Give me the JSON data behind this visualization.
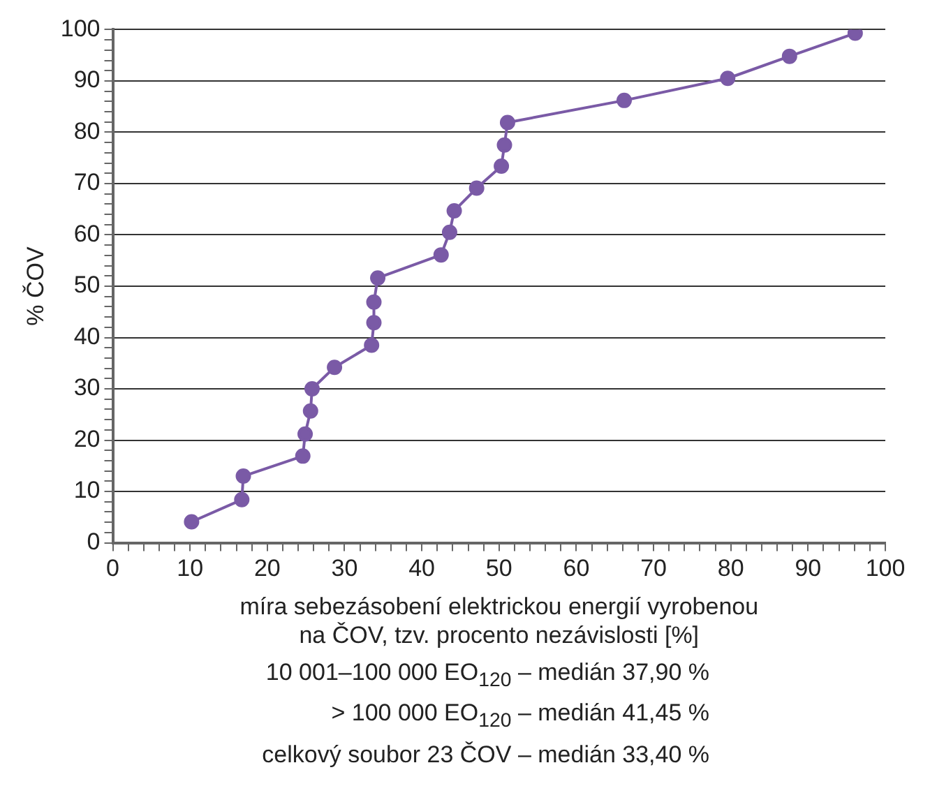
{
  "chart_data": {
    "type": "line",
    "xlabel": "míra sebezásobení elektrickou energií vyrobenou\nna ČOV, tzv. procento nezávislosti [%]",
    "ylabel": "% ČOV",
    "x": [
      10.2,
      16.7,
      16.9,
      24.6,
      24.9,
      25.6,
      25.8,
      28.7,
      33.5,
      33.8,
      33.8,
      34.3,
      42.5,
      43.6,
      44.2,
      47.1,
      50.3,
      50.7,
      51.1,
      66.2,
      79.6,
      87.6,
      96.1
    ],
    "values": [
      4.1,
      8.4,
      13.0,
      16.9,
      21.2,
      25.7,
      30.0,
      34.2,
      38.5,
      42.9,
      46.9,
      51.6,
      56.1,
      60.5,
      64.7,
      69.1,
      73.4,
      77.5,
      81.9,
      86.2,
      90.5,
      94.8,
      99.3
    ],
    "color": "#7a5aa6",
    "marker": "circle",
    "line_style": "solid",
    "xlim": [
      0,
      100
    ],
    "ylim": [
      0,
      100
    ],
    "xticks": [
      0,
      {
        "value": 2,
        "label": null
      },
      {
        "value": 4,
        "label": null
      },
      {
        "value": 6,
        "label": null
      },
      {
        "value": 8,
        "label": null
      },
      10,
      {
        "value": 12,
        "label": null
      },
      {
        "value": 14,
        "label": null
      },
      {
        "value": 16,
        "label": null
      },
      {
        "value": 18,
        "label": null
      },
      20,
      {
        "value": 22,
        "label": null
      },
      {
        "value": 24,
        "label": null
      },
      {
        "value": 26,
        "label": null
      },
      {
        "value": 28,
        "label": null
      },
      30,
      {
        "value": 32,
        "label": null
      },
      {
        "value": 34,
        "label": null
      },
      {
        "value": 36,
        "label": null
      },
      {
        "value": 38,
        "label": null
      },
      40,
      {
        "value": 42,
        "label": null
      },
      {
        "value": 44,
        "label": null
      },
      {
        "value": 46,
        "label": null
      },
      {
        "value": 48,
        "label": null
      },
      50,
      {
        "value": 52,
        "label": null
      },
      {
        "value": 54,
        "label": null
      },
      {
        "value": 56,
        "label": null
      },
      {
        "value": 58,
        "label": null
      },
      60,
      {
        "value": 62,
        "label": null
      },
      {
        "value": 64,
        "label": null
      },
      {
        "value": 66,
        "label": null
      },
      {
        "value": 68,
        "label": null
      },
      70,
      {
        "value": 72,
        "label": null
      },
      {
        "value": 74,
        "label": null
      },
      {
        "value": 76,
        "label": null
      },
      {
        "value": 78,
        "label": null
      },
      80,
      {
        "value": 82,
        "label": null
      },
      {
        "value": 84,
        "label": null
      },
      {
        "value": 86,
        "label": null
      },
      {
        "value": 88,
        "label": null
      },
      90,
      {
        "value": 92,
        "label": null
      },
      {
        "value": 94,
        "label": null
      },
      {
        "value": 96,
        "label": null
      },
      {
        "value": 98,
        "label": null
      },
      100
    ],
    "yticks": [
      0,
      {
        "value": 2,
        "label": null
      },
      {
        "value": 4,
        "label": null
      },
      {
        "value": 6,
        "label": null
      },
      {
        "value": 8,
        "label": null
      },
      10,
      {
        "value": 12,
        "label": null
      },
      {
        "value": 14,
        "label": null
      },
      {
        "value": 16,
        "label": null
      },
      {
        "value": 18,
        "label": null
      },
      20,
      {
        "value": 22,
        "label": null
      },
      {
        "value": 24,
        "label": null
      },
      {
        "value": 26,
        "label": null
      },
      {
        "value": 28,
        "label": null
      },
      30,
      {
        "value": 32,
        "label": null
      },
      {
        "value": 34,
        "label": null
      },
      {
        "value": 36,
        "label": null
      },
      {
        "value": 38,
        "label": null
      },
      40,
      {
        "value": 42,
        "label": null
      },
      {
        "value": 44,
        "label": null
      },
      {
        "value": 46,
        "label": null
      },
      {
        "value": 48,
        "label": null
      },
      50,
      {
        "value": 52,
        "label": null
      },
      {
        "value": 54,
        "label": null
      },
      {
        "value": 56,
        "label": null
      },
      {
        "value": 58,
        "label": null
      },
      60,
      {
        "value": 62,
        "label": null
      },
      {
        "value": 64,
        "label": null
      },
      {
        "value": 66,
        "label": null
      },
      {
        "value": 68,
        "label": null
      },
      70,
      {
        "value": 72,
        "label": null
      },
      {
        "value": 74,
        "label": null
      },
      {
        "value": 76,
        "label": null
      },
      {
        "value": 78,
        "label": null
      },
      80,
      {
        "value": 82,
        "label": null
      },
      {
        "value": 84,
        "label": null
      },
      {
        "value": 86,
        "label": null
      },
      {
        "value": 88,
        "label": null
      },
      90,
      {
        "value": 92,
        "label": null
      },
      {
        "value": 94,
        "label": null
      },
      {
        "value": 96,
        "label": null
      },
      {
        "value": 98,
        "label": null
      },
      100
    ],
    "grid": "y",
    "legend": false,
    "annotations": [
      "10 001–100 000 EO$_{120}$ – medián 37,90 %",
      "> 100 000 EO$_{120}$ – medián 41,45 %",
      "celkový soubor 23 ČOV – medián 33,40 %"
    ]
  }
}
